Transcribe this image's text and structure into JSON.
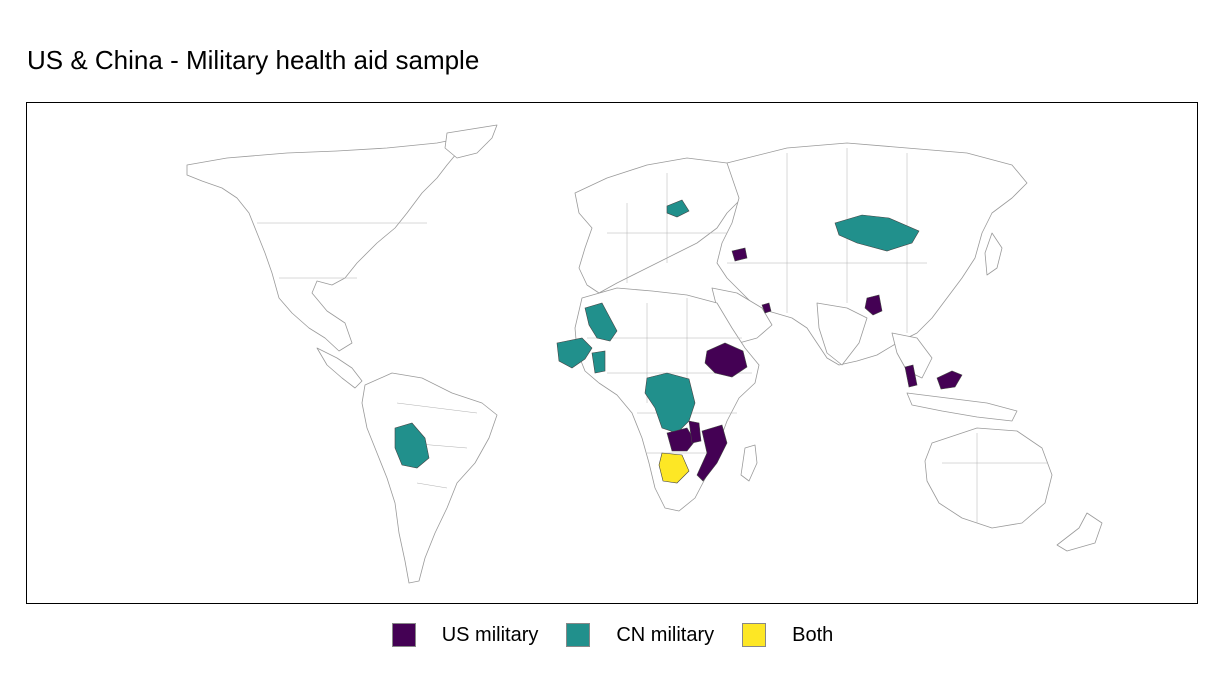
{
  "title": "US & China - Military health aid sample",
  "legend": [
    {
      "label": "US military",
      "color": "#440154"
    },
    {
      "label": "CN military",
      "color": "#21908C"
    },
    {
      "label": "Both",
      "color": "#FDE725"
    }
  ],
  "categories": {
    "us_military": [
      "Ethiopia",
      "Malawi",
      "Zambia",
      "Mozambique",
      "Tanzania (south)",
      "Bangladesh",
      "Malaysia",
      "Thailand (south)",
      "Armenia",
      "Azerbaijan",
      "Oman (UAE region)"
    ],
    "cn_military": [
      "Mali",
      "Guinea",
      "Sierra Leone",
      "Liberia",
      "Côte d'Ivoire",
      "Togo",
      "DR Congo",
      "Republic of Congo",
      "Belarus",
      "Mongolia",
      "Bolivia",
      "Cameroon"
    ],
    "both": [
      "Botswana"
    ]
  },
  "map_style": {
    "land_fill": "#ffffff",
    "border_color": "#9a9a9a",
    "background": "#ffffff"
  }
}
